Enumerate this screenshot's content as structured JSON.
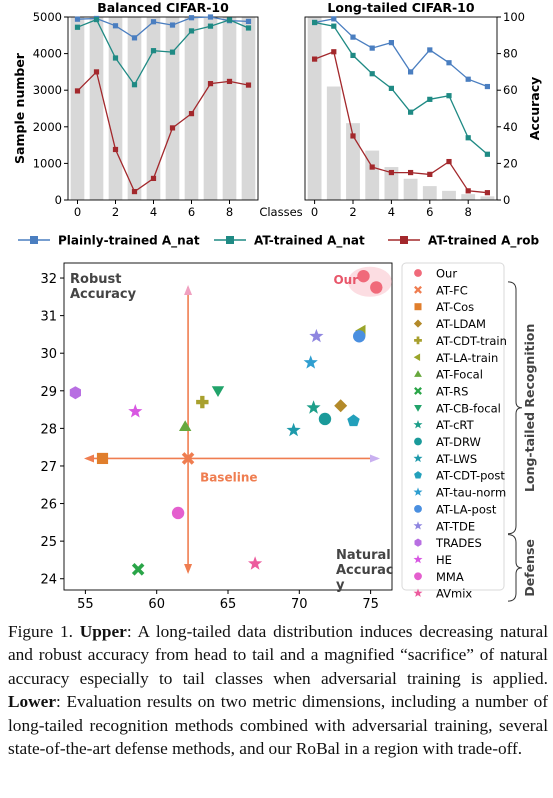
{
  "chart_data": [
    {
      "type": "bar+line",
      "title": "Balanced CIFAR-10",
      "ylabel": "Sample number",
      "ylim": [
        0,
        5000
      ],
      "yticks": [
        0,
        1000,
        2000,
        3000,
        4000,
        5000
      ],
      "xticks": [
        0,
        2,
        4,
        6,
        8
      ],
      "x": [
        0,
        1,
        2,
        3,
        4,
        5,
        6,
        7,
        8,
        9
      ],
      "bars": [
        5000,
        5000,
        5000,
        5000,
        5000,
        5000,
        5000,
        5000,
        5000,
        5000
      ],
      "series": [
        {
          "key": "plain",
          "values": [
            4940,
            4960,
            4760,
            4430,
            4870,
            4780,
            4980,
            5000,
            4900,
            4880
          ]
        },
        {
          "key": "at_nat",
          "values": [
            4720,
            4930,
            3880,
            3150,
            4080,
            4040,
            4620,
            4750,
            4920,
            4700
          ]
        },
        {
          "key": "at_rob",
          "values": [
            2980,
            3500,
            1380,
            230,
            590,
            1970,
            2360,
            3180,
            3240,
            3140
          ]
        }
      ]
    },
    {
      "type": "bar+line",
      "title": "Long-tailed CIFAR-10",
      "ylabel": "Accuracy",
      "ylim": [
        0,
        100
      ],
      "yticks": [
        0,
        20,
        40,
        60,
        80,
        100
      ],
      "xticks": [
        0,
        2,
        4,
        6,
        8
      ],
      "x": [
        0,
        1,
        2,
        3,
        4,
        5,
        6,
        7,
        8,
        9
      ],
      "bars": [
        5000,
        3100,
        2100,
        1350,
        900,
        580,
        380,
        250,
        160,
        100
      ],
      "series": [
        {
          "key": "plain",
          "values": [
            97,
            99,
            89,
            83,
            86,
            70,
            82,
            75,
            66,
            62
          ]
        },
        {
          "key": "at_nat",
          "values": [
            97,
            95,
            79,
            69,
            61,
            48,
            55,
            57,
            34,
            25
          ]
        },
        {
          "key": "at_rob",
          "values": [
            77,
            81,
            35,
            18,
            15,
            15,
            14,
            21,
            5,
            4
          ]
        }
      ]
    },
    {
      "type": "scatter",
      "xlabel": "Natural Accuracy",
      "ylabel": "Robust Accuracy",
      "xlim": [
        53.5,
        76.5
      ],
      "ylim": [
        23.7,
        32.4
      ],
      "xticks": [
        55,
        60,
        65,
        70,
        75
      ],
      "yticks": [
        24,
        25,
        26,
        27,
        28,
        29,
        30,
        31,
        32
      ],
      "baseline": {
        "x": 62.2,
        "y": 27.2
      },
      "points": [
        {
          "label": "Our",
          "marker": "circle",
          "color": "#f06a7a",
          "x": 75.4,
          "y": 31.75
        },
        {
          "label": "Our",
          "marker": "circle",
          "color": "#f06a7a",
          "x": 74.5,
          "y": 32.05
        },
        {
          "label": "AT-FC",
          "marker": "x",
          "color": "#ef7d50",
          "x": 62.2,
          "y": 27.2
        },
        {
          "label": "AT-Cos",
          "marker": "square",
          "color": "#e07e2c",
          "x": 56.2,
          "y": 27.2
        },
        {
          "label": "AT-LDAM",
          "marker": "diamond",
          "color": "#b38a2a",
          "x": 72.9,
          "y": 28.6
        },
        {
          "label": "AT-CDT-train",
          "marker": "plus",
          "color": "#a8a02e",
          "x": 63.2,
          "y": 28.7
        },
        {
          "label": "AT-LA-train",
          "marker": "triangle-left",
          "color": "#9aa52a",
          "x": 74.4,
          "y": 30.6
        },
        {
          "label": "AT-Focal",
          "marker": "triangle-up",
          "color": "#67a83d",
          "x": 62.0,
          "y": 28.05
        },
        {
          "label": "AT-RS",
          "marker": "x",
          "color": "#2aa548",
          "x": 58.7,
          "y": 24.25
        },
        {
          "label": "AT-CB-focal",
          "marker": "triangle-down",
          "color": "#21a36a",
          "x": 64.3,
          "y": 29.0
        },
        {
          "label": "AT-cRT",
          "marker": "star",
          "color": "#1e9f8a",
          "x": 71.0,
          "y": 28.55
        },
        {
          "label": "AT-DRW",
          "marker": "circle",
          "color": "#1a9a9a",
          "x": 71.8,
          "y": 28.25
        },
        {
          "label": "AT-LWS",
          "marker": "star",
          "color": "#1e9aab",
          "x": 69.6,
          "y": 27.95
        },
        {
          "label": "AT-CDT-post",
          "marker": "pentagon",
          "color": "#23a0bb",
          "x": 73.8,
          "y": 28.2
        },
        {
          "label": "AT-tau-norm",
          "marker": "star",
          "color": "#2f9ed0",
          "x": 70.8,
          "y": 29.75
        },
        {
          "label": "AT-LA-post",
          "marker": "circle",
          "color": "#4a8fe0",
          "x": 74.2,
          "y": 30.45
        },
        {
          "label": "AT-TDE",
          "marker": "star",
          "color": "#8f86e0",
          "x": 71.2,
          "y": 30.45
        },
        {
          "label": "TRADES",
          "marker": "hexagon",
          "color": "#b86fe2",
          "x": 54.3,
          "y": 28.95
        },
        {
          "label": "HE",
          "marker": "star",
          "color": "#d857e2",
          "x": 58.5,
          "y": 28.45
        },
        {
          "label": "MMA",
          "marker": "circle",
          "color": "#e45fce",
          "x": 61.5,
          "y": 25.75
        },
        {
          "label": "AVmix",
          "marker": "star",
          "color": "#ec5b9d",
          "x": 66.9,
          "y": 24.4
        }
      ]
    }
  ],
  "legend_top": [
    {
      "key": "plain",
      "label": "Plainly-trained A_nat",
      "color": "#4a7ec0",
      "marker": "square"
    },
    {
      "key": "at_nat",
      "label": "AT-trained A_nat",
      "color": "#1f8a84",
      "marker": "square"
    },
    {
      "key": "at_rob",
      "label": "AT-trained A_rob",
      "color": "#a3282c",
      "marker": "square"
    }
  ],
  "bar_color": "#d8d8d8",
  "texts": {
    "classes": "Classes",
    "robust_accuracy": "Robust\nAccuracy",
    "natural_accuracy": "Natural\nAccurac\ny",
    "baseline": "Baseline",
    "our": "Our",
    "long_tailed_recognition": "Long-tailed Recognition",
    "defense": "Defense"
  },
  "legend_groups": {
    "long_tailed_start": 1,
    "long_tailed_end": 15,
    "defense_start": 16,
    "defense_end": 19
  },
  "caption": {
    "fig": "Figure 1.",
    "upper_label": "Upper",
    "upper_text": ": A long-tailed data distribution induces decreasing natural and robust accuracy from head to tail and a magnified “sacrifice” of natural accuracy especially to tail classes when adversarial training is applied.",
    "lower_label": "Lower",
    "lower_text": ": Evaluation results on two metric dimensions, including a number of long-tailed recognition methods combined with adversarial training, several state-of-the-art defense methods, and our RoBal in a region with trade-off."
  }
}
